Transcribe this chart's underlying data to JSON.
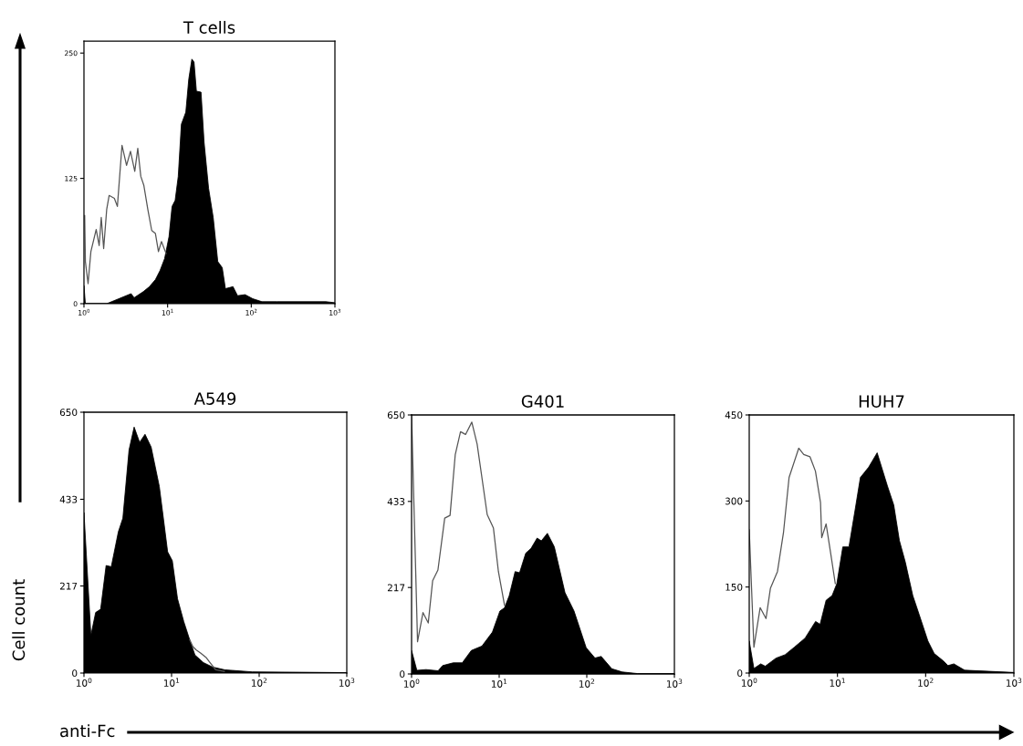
{
  "chart_data": [
    {
      "type": "area",
      "title": "T cells",
      "log": "x",
      "grid": false,
      "xlim": [
        1,
        1000
      ],
      "ylim": [
        0,
        262
      ],
      "xticks": [
        {
          "value": 1,
          "label": "10$^{0}$"
        },
        {
          "value": 10,
          "label": "10$^{1}$"
        },
        {
          "value": 100,
          "label": "10$^{2}$"
        },
        {
          "value": 1000,
          "label": "10$^{3}$"
        }
      ],
      "yticks": [
        0,
        125,
        250
      ],
      "series": [
        {
          "color": "#000000",
          "x": [
            1.0,
            1.04,
            1.87,
            3.66,
            3.98,
            4.52,
            5.12,
            6.06,
            7.15,
            8.11,
            9.21,
            10.4,
            11.3,
            12.3,
            13.4,
            14.6,
            16.5,
            17.9,
            19.5,
            20.7,
            22.1,
            25.1,
            27.3,
            30.9,
            35.1,
            39.8,
            45.0,
            49.1,
            60.5,
            68.6,
            84.3,
            104,
            134,
            203,
            366,
            779,
            1000
          ],
          "values": [
            18,
            0,
            0,
            10,
            6,
            9,
            12,
            17,
            24,
            33,
            45,
            67,
            97,
            103,
            127,
            179,
            191,
            224,
            244,
            241,
            212,
            211,
            161,
            115,
            86,
            42,
            36,
            15,
            17,
            8,
            9,
            5,
            2,
            2,
            2,
            2,
            1
          ]
        },
        {
          "type": "line",
          "color": "#555555",
          "x": [
            1.02,
            1.04,
            1.12,
            1.21,
            1.4,
            1.52,
            1.61,
            1.72,
            1.87,
            2.0,
            2.31,
            2.51,
            2.85,
            3.23,
            3.6,
            4.05,
            4.4,
            4.78,
            5.2,
            5.8,
            6.46,
            7.15,
            7.77,
            8.44,
            9.59
          ],
          "values": [
            88,
            42,
            20,
            52,
            74,
            58,
            86,
            55,
            94,
            108,
            105,
            97,
            158,
            138,
            152,
            132,
            155,
            127,
            118,
            94,
            73,
            70,
            52,
            62,
            50
          ]
        }
      ]
    },
    {
      "type": "area",
      "title": "A549",
      "xlabel": "anti-Fc",
      "ylabel": "Cell count",
      "log": "x",
      "grid": false,
      "xlim": [
        1,
        1000
      ],
      "ylim": [
        0,
        650
      ],
      "xticks": [
        {
          "value": 1,
          "label": "10$^{0}$"
        },
        {
          "value": 10,
          "label": "10$^{1}$"
        },
        {
          "value": 100,
          "label": "10$^{2}$"
        },
        {
          "value": 1000,
          "label": "10$^{3}$"
        }
      ],
      "yticks": [
        0,
        217,
        433,
        650
      ],
      "series": [
        {
          "color": "#000000",
          "x": [
            1.0,
            1.2,
            1.36,
            1.55,
            1.79,
            2.05,
            2.47,
            2.78,
            3.27,
            3.74,
            4.32,
            4.98,
            5.85,
            7.25,
            7.86,
            9.02,
            10.2,
            11.7,
            13.8,
            16.1,
            18.5,
            23.1,
            29.4,
            40.6,
            83,
            1000
          ],
          "values": [
            400,
            94,
            151,
            159,
            268,
            265,
            352,
            386,
            556,
            613,
            575,
            595,
            563,
            465,
            405,
            302,
            280,
            185,
            128,
            83,
            45,
            26,
            15,
            8,
            3,
            1
          ]
        },
        {
          "type": "line",
          "color": "#555555",
          "x": [
            16.1,
            17.5,
            19.0,
            21.4,
            25.0,
            27.0,
            29.4,
            31.8,
            40.0
          ],
          "values": [
            83,
            66,
            58,
            50,
            38,
            28,
            18,
            8,
            4
          ]
        }
      ]
    },
    {
      "type": "area",
      "title": "G401",
      "log": "x",
      "grid": false,
      "xlim": [
        1,
        1000
      ],
      "ylim": [
        0,
        650
      ],
      "xticks": [
        {
          "value": 1,
          "label": "10$^{0}$"
        },
        {
          "value": 10,
          "label": "10$^{1}$"
        },
        {
          "value": 100,
          "label": "10$^{2}$"
        },
        {
          "value": 1000,
          "label": "10$^{3}$"
        }
      ],
      "yticks": [
        0,
        217,
        433,
        650
      ],
      "series": [
        {
          "color": "#000000",
          "x": [
            1.0,
            1.15,
            1.46,
            2.01,
            2.26,
            2.99,
            3.79,
            4.81,
            6.35,
            8.37,
            10.2,
            11.5,
            13.0,
            15.2,
            17.1,
            20.1,
            23.1,
            27.1,
            30.3,
            35.5,
            42.6,
            56.4,
            71.5,
            98.4,
            124,
            146,
            193,
            254,
            378,
            1000
          ],
          "values": [
            59,
            9,
            11,
            8,
            21,
            28,
            28,
            59,
            70,
            105,
            158,
            166,
            196,
            257,
            254,
            303,
            315,
            341,
            334,
            353,
            319,
            204,
            158,
            66,
            40,
            44,
            13,
            5,
            1,
            1
          ]
        },
        {
          "type": "line",
          "color": "#555555",
          "x": [
            1.0,
            1.17,
            1.35,
            1.55,
            1.74,
            2.0,
            2.39,
            2.75,
            3.15,
            3.62,
            4.13,
            4.87,
            5.6,
            7.3,
            8.6,
            9.8,
            11.5
          ],
          "values": [
            650,
            81,
            154,
            128,
            234,
            261,
            391,
            398,
            550,
            608,
            601,
            632,
            577,
            400,
            366,
            257,
            173
          ]
        }
      ]
    },
    {
      "type": "area",
      "title": "HUH7",
      "log": "x",
      "grid": false,
      "xlim": [
        1,
        1000
      ],
      "ylim": [
        0,
        450
      ],
      "xticks": [
        {
          "value": 1,
          "label": "10$^{0}$"
        },
        {
          "value": 10,
          "label": "10$^{1}$"
        },
        {
          "value": 100,
          "label": "10$^{2}$"
        },
        {
          "value": 1000,
          "label": "10$^{3}$"
        }
      ],
      "yticks": [
        0,
        150,
        300,
        450
      ],
      "series": [
        {
          "color": "#000000",
          "x": [
            1.0,
            1.13,
            1.35,
            1.52,
            2.01,
            2.55,
            3.24,
            4.3,
            5.65,
            6.36,
            7.44,
            8.7,
            9.85,
            11.5,
            13.5,
            15.8,
            18.2,
            22.6,
            28.2,
            36.9,
            43.5,
            50.4,
            58.9,
            71.5,
            84,
            106,
            125,
            159,
            179,
            209,
            276,
            1000
          ],
          "values": [
            56,
            8,
            16,
            12,
            26,
            32,
            45,
            61,
            90,
            85,
            127,
            135,
            156,
            220,
            220,
            283,
            341,
            359,
            384,
            326,
            293,
            231,
            193,
            135,
            103,
            56,
            34,
            21,
            13,
            16,
            5,
            1
          ]
        },
        {
          "type": "line",
          "color": "#555555",
          "x": [
            1.0,
            1.13,
            1.33,
            1.55,
            1.74,
            2.09,
            2.45,
            2.83,
            3.64,
            4.15,
            4.89,
            5.63,
            6.43,
            6.63,
            7.44,
            8.38,
            9.45
          ],
          "values": [
            250,
            45,
            114,
            95,
            148,
            177,
            246,
            341,
            392,
            381,
            377,
            352,
            297,
            236,
            260,
            209,
            156
          ]
        }
      ]
    }
  ]
}
